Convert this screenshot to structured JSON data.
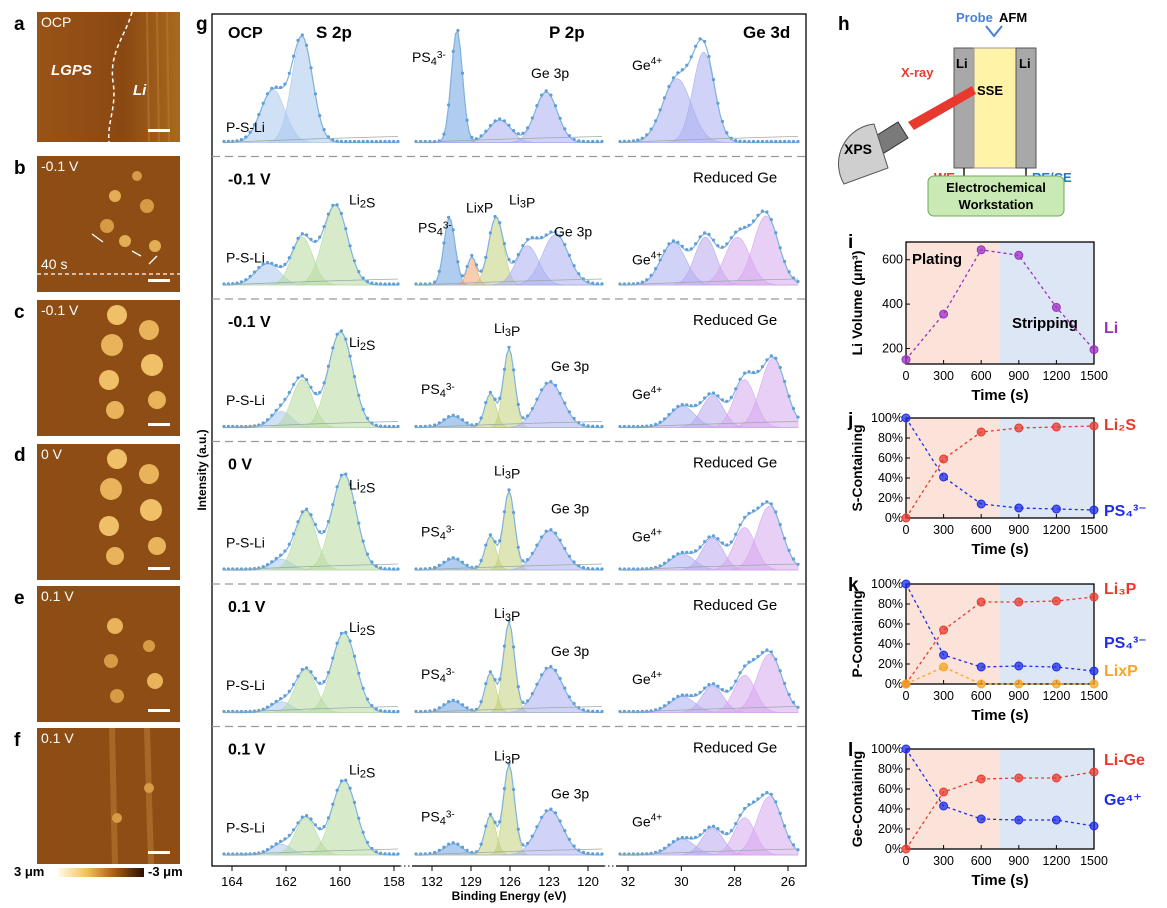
{
  "panel_letters": {
    "a": "a",
    "b": "b",
    "c": "c",
    "d": "d",
    "e": "e",
    "f": "f",
    "g": "g",
    "h": "h",
    "i": "i",
    "j": "j",
    "k": "k",
    "l": "l"
  },
  "afm": {
    "a": {
      "caption": "OCP",
      "region_left": "LGPS",
      "region_right": "Li"
    },
    "b": {
      "caption": "-0.1 V",
      "time": "40 s"
    },
    "c": {
      "caption": "-0.1 V"
    },
    "d": {
      "caption": "0 V"
    },
    "e": {
      "caption": "0.1 V"
    },
    "f": {
      "caption": "0.1 V"
    },
    "colorbar": {
      "left": "3 μm",
      "right": "-3 μm"
    }
  },
  "xps": {
    "col_headers": {
      "s2p": "S 2p",
      "p2p": "P 2p",
      "ge3d": "Ge 3d"
    },
    "y_label": "Intensity (a.u.)",
    "x_label": "Binding Energy (eV)",
    "x_ticks": {
      "s2p": [
        "164",
        "162",
        "160",
        "158"
      ],
      "p2p": [
        "132",
        "129",
        "126",
        "123",
        "120"
      ],
      "ge3d": [
        "32",
        "30",
        "28",
        "26"
      ]
    },
    "rows": [
      {
        "condition": "OCP",
        "s_peaks": [
          "P-S-Li"
        ],
        "p_peaks": [
          "PS4",
          "Ge 3p"
        ],
        "ge_peaks": [
          "Ge4+"
        ]
      },
      {
        "condition": "-0.1 V",
        "s_peaks": [
          "P-S-Li",
          "Li2S"
        ],
        "p_peaks": [
          "PS4",
          "LixP",
          "Li3P",
          "Ge 3p"
        ],
        "ge_peaks": [
          "Ge4+",
          "Reduced Ge"
        ]
      },
      {
        "condition": "-0.1 V",
        "s_peaks": [
          "P-S-Li",
          "Li2S"
        ],
        "p_peaks": [
          "PS4",
          "Li3P",
          "Ge 3p"
        ],
        "ge_peaks": [
          "Ge4+",
          "Reduced Ge"
        ]
      },
      {
        "condition": "0 V",
        "s_peaks": [
          "P-S-Li",
          "Li2S"
        ],
        "p_peaks": [
          "PS4",
          "Li3P",
          "Ge 3p"
        ],
        "ge_peaks": [
          "Ge4+",
          "Reduced Ge"
        ]
      },
      {
        "condition": "0.1 V",
        "s_peaks": [
          "P-S-Li",
          "Li2S"
        ],
        "p_peaks": [
          "PS4",
          "Li3P",
          "Ge 3p"
        ],
        "ge_peaks": [
          "Ge4+",
          "Reduced Ge"
        ]
      },
      {
        "condition": "0.1 V",
        "s_peaks": [
          "P-S-Li",
          "Li2S"
        ],
        "p_peaks": [
          "PS4",
          "Li3P",
          "Ge 3p"
        ],
        "ge_peaks": [
          "Ge4+",
          "Reduced Ge"
        ]
      }
    ]
  },
  "schematic": {
    "probe": "Probe",
    "afm": "AFM",
    "xray": "X-ray",
    "li_left": "Li",
    "li_right": "Li",
    "sse": "SSE",
    "xps": "XPS",
    "we": "WE",
    "rece": "RE/CE",
    "workstation_1": "Electrochemical",
    "workstation_2": "Workstation"
  },
  "colors": {
    "red": "#e8392f",
    "blue": "#1f2de6",
    "purple": "#9b30c0",
    "orange": "#f5a623",
    "plating_bg": "#fbe3d9",
    "stripping_bg": "#dde6f5",
    "xps_fit": "#7fb2e0"
  },
  "chart_data": [
    {
      "type": "line",
      "panel": "i",
      "xlabel": "Time (s)",
      "ylabel": "Li Volume (μm³)",
      "x": [
        0,
        300,
        600,
        900,
        1200,
        1500
      ],
      "xlim": [
        0,
        1500
      ],
      "ylim": [
        130,
        680
      ],
      "yticks": [
        "200",
        "400",
        "600"
      ],
      "xticks": [
        "0",
        "300",
        "600",
        "900",
        "1200",
        "1500"
      ],
      "regions": [
        {
          "label": "Plating",
          "from": 0,
          "to": 750
        },
        {
          "label": "Stripping",
          "from": 750,
          "to": 1500
        }
      ],
      "series": [
        {
          "name": "Li",
          "values": [
            150,
            355,
            645,
            620,
            385,
            195
          ]
        }
      ]
    },
    {
      "type": "line",
      "panel": "j",
      "xlabel": "Time (s)",
      "ylabel": "S-Containing",
      "x": [
        0,
        300,
        600,
        900,
        1200,
        1500
      ],
      "xlim": [
        0,
        1500
      ],
      "ylim": [
        0,
        100
      ],
      "yticks": [
        "0%",
        "20%",
        "40%",
        "60%",
        "80%",
        "100%"
      ],
      "xticks": [
        "0",
        "300",
        "600",
        "900",
        "1200",
        "1500"
      ],
      "series": [
        {
          "name": "Li₂S",
          "values": [
            0,
            59,
            86,
            90,
            91,
            92
          ]
        },
        {
          "name": "PS₄³⁻",
          "values": [
            100,
            41,
            14,
            10,
            9,
            8
          ]
        }
      ]
    },
    {
      "type": "line",
      "panel": "k",
      "xlabel": "Time (s)",
      "ylabel": "P-Containing",
      "x": [
        0,
        300,
        600,
        900,
        1200,
        1500
      ],
      "xlim": [
        0,
        1500
      ],
      "ylim": [
        0,
        100
      ],
      "yticks": [
        "0%",
        "20%",
        "40%",
        "60%",
        "80%",
        "100%"
      ],
      "xticks": [
        "0",
        "300",
        "600",
        "900",
        "1200",
        "1500"
      ],
      "series": [
        {
          "name": "Li₃P",
          "values": [
            0,
            54,
            82,
            82,
            83,
            87
          ]
        },
        {
          "name": "PS₄³⁻",
          "values": [
            100,
            29,
            17,
            18,
            17,
            13
          ]
        },
        {
          "name": "LixP",
          "values": [
            0,
            17,
            0,
            0,
            0,
            0
          ]
        }
      ]
    },
    {
      "type": "line",
      "panel": "l",
      "xlabel": "Time (s)",
      "ylabel": "Ge-Containing",
      "x": [
        0,
        300,
        600,
        900,
        1200,
        1500
      ],
      "xlim": [
        0,
        1500
      ],
      "ylim": [
        0,
        100
      ],
      "yticks": [
        "0%",
        "20%",
        "40%",
        "60%",
        "80%",
        "100%"
      ],
      "xticks": [
        "0",
        "300",
        "600",
        "900",
        "1200",
        "1500"
      ],
      "series": [
        {
          "name": "Li-Ge",
          "values": [
            0,
            57,
            70,
            71,
            71,
            77
          ]
        },
        {
          "name": "Ge⁴⁺",
          "values": [
            100,
            43,
            30,
            29,
            29,
            23
          ]
        }
      ]
    }
  ]
}
